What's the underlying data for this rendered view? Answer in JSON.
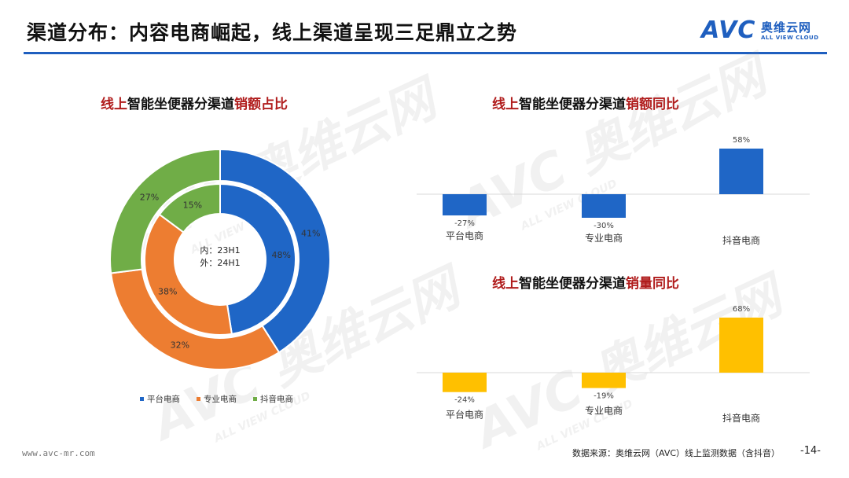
{
  "header": {
    "title": "渠道分布：内容电商崛起，线上渠道呈现三足鼎立之势",
    "logo_mark": "AVC",
    "logo_cn": "奥维云网",
    "logo_en": "ALL VIEW CLOUD"
  },
  "watermark": {
    "mark": "AVC",
    "cn": "奥维云网",
    "en": "ALL VIEW CLOUD"
  },
  "colors": {
    "platform": "#1f66c6",
    "specialty": "#ed7d31",
    "douyin": "#70ad47",
    "yellow": "#ffc000",
    "accent_red": "#b01c1c",
    "rule": "#1f5fbf"
  },
  "chart_data": [
    {
      "type": "pie",
      "title_red": "线上",
      "title_black": "智能坐便器分渠道",
      "title_red2": "销额占比",
      "center_line1": "内：23H1",
      "center_line2": "外：24H1",
      "legend": [
        "平台电商",
        "专业电商",
        "抖音电商"
      ],
      "legend_position": "bottom",
      "series": [
        {
          "name": "内：23H1",
          "values": [
            48,
            38,
            15
          ],
          "labels": [
            "48%",
            "38%",
            "15%"
          ]
        },
        {
          "name": "外：24H1",
          "values": [
            41,
            32,
            27
          ],
          "labels": [
            "41%",
            "32%",
            "27%"
          ]
        }
      ]
    },
    {
      "type": "bar",
      "title_red": "线上",
      "title_black": "智能坐便器分渠道",
      "title_red2": "销额同比",
      "categories": [
        "平台电商",
        "专业电商",
        "抖音电商"
      ],
      "values": [
        -27,
        -30,
        58
      ],
      "labels": [
        "-27%",
        "-30%",
        "58%"
      ],
      "ylim": [
        -30,
        60
      ]
    },
    {
      "type": "bar",
      "title_red": "线上",
      "title_black": "智能坐便器分渠道",
      "title_red2": "销量同比",
      "categories": [
        "平台电商",
        "专业电商",
        "抖音电商"
      ],
      "values": [
        -24,
        -19,
        68
      ],
      "labels": [
        "-24%",
        "-19%",
        "68%"
      ],
      "ylim": [
        -24,
        68
      ]
    }
  ],
  "footer": {
    "website": "www.avc-mr.com",
    "source": "数据来源：奥维云网（AVC）线上监测数据（含抖音）",
    "page": "-14-"
  }
}
